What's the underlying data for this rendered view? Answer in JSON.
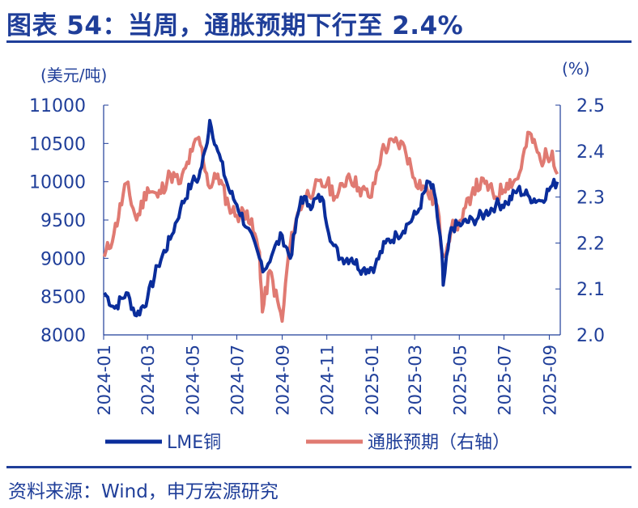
{
  "title": "图表 54：当周，通胀预期下行至 2.4%",
  "source": "资料来源：Wind，申万宏源研究",
  "colors": {
    "primary": "#1f3e99",
    "copper": "#0a2d9b",
    "inflation": "#e07a72"
  },
  "chart_data": {
    "type": "line",
    "left_unit": "(美元/吨)",
    "right_unit": "(%)",
    "left_ticks": [
      "11000",
      "10500",
      "10000",
      "9500",
      "9000",
      "8500",
      "8000"
    ],
    "right_ticks": [
      "2.5",
      "2.4",
      "2.3",
      "2.2",
      "2.1",
      "2.0"
    ],
    "x_ticks": [
      "2024-01",
      "2024-03",
      "2024-05",
      "2024-07",
      "2024-09",
      "2024-11",
      "2025-01",
      "2025-03",
      "2025-05",
      "2025-07",
      "2025-09"
    ],
    "ylim_left": [
      8000,
      11000
    ],
    "ylim_right": [
      2.0,
      2.5
    ],
    "legend": {
      "copper": "LME铜",
      "inflation": "通胀预期（右轴）"
    },
    "series": [
      {
        "name": "LME铜",
        "axis": "left",
        "x": [
          "2024-01-02",
          "2024-01-16",
          "2024-02-01",
          "2024-02-15",
          "2024-03-01",
          "2024-03-15",
          "2024-04-01",
          "2024-04-15",
          "2024-05-01",
          "2024-05-10",
          "2024-05-20",
          "2024-05-25",
          "2024-06-05",
          "2024-06-20",
          "2024-07-01",
          "2024-07-15",
          "2024-08-01",
          "2024-08-08",
          "2024-08-20",
          "2024-09-01",
          "2024-09-12",
          "2024-09-27",
          "2024-10-08",
          "2024-10-25",
          "2024-11-08",
          "2024-11-20",
          "2024-12-05",
          "2024-12-20",
          "2025-01-06",
          "2025-01-20",
          "2025-02-05",
          "2025-02-20",
          "2025-03-05",
          "2025-03-20",
          "2025-03-28",
          "2025-04-07",
          "2025-04-09",
          "2025-04-20",
          "2025-05-05",
          "2025-05-20",
          "2025-06-05",
          "2025-06-20",
          "2025-07-05",
          "2025-07-20",
          "2025-08-05",
          "2025-08-20",
          "2025-09-05",
          "2025-09-12"
        ],
        "values": [
          8550,
          8350,
          8550,
          8250,
          8480,
          8900,
          9250,
          9650,
          10000,
          10050,
          10450,
          10800,
          10400,
          9900,
          9700,
          9400,
          9000,
          8850,
          9100,
          9300,
          9000,
          9800,
          9700,
          9800,
          9200,
          9000,
          9000,
          8850,
          8900,
          9200,
          9300,
          9450,
          9600,
          10000,
          9850,
          9100,
          8650,
          9400,
          9450,
          9500,
          9580,
          9700,
          9720,
          9900,
          9800,
          9750,
          9950,
          10000
        ]
      },
      {
        "name": "通胀预期（右轴）",
        "axis": "right",
        "x": [
          "2024-01-02",
          "2024-01-15",
          "2024-02-01",
          "2024-02-15",
          "2024-03-01",
          "2024-03-15",
          "2024-04-01",
          "2024-04-15",
          "2024-05-01",
          "2024-05-10",
          "2024-05-25",
          "2024-06-05",
          "2024-06-20",
          "2024-07-01",
          "2024-07-15",
          "2024-08-01",
          "2024-08-05",
          "2024-08-15",
          "2024-09-01",
          "2024-09-10",
          "2024-09-20",
          "2024-10-01",
          "2024-10-15",
          "2024-11-01",
          "2024-11-15",
          "2024-12-01",
          "2024-12-15",
          "2025-01-01",
          "2025-01-15",
          "2025-02-01",
          "2025-02-15",
          "2025-03-01",
          "2025-03-15",
          "2025-04-01",
          "2025-04-08",
          "2025-04-20",
          "2025-05-05",
          "2025-05-20",
          "2025-06-05",
          "2025-06-20",
          "2025-07-05",
          "2025-07-20",
          "2025-08-05",
          "2025-08-20",
          "2025-09-05",
          "2025-09-12"
        ],
        "values": [
          2.17,
          2.22,
          2.33,
          2.25,
          2.32,
          2.3,
          2.35,
          2.33,
          2.4,
          2.43,
          2.32,
          2.35,
          2.28,
          2.26,
          2.27,
          2.18,
          2.05,
          2.14,
          2.03,
          2.18,
          2.25,
          2.3,
          2.32,
          2.33,
          2.3,
          2.35,
          2.32,
          2.3,
          2.4,
          2.42,
          2.41,
          2.34,
          2.32,
          2.28,
          2.17,
          2.23,
          2.25,
          2.32,
          2.33,
          2.3,
          2.33,
          2.34,
          2.44,
          2.38,
          2.4,
          2.35
        ]
      }
    ]
  }
}
